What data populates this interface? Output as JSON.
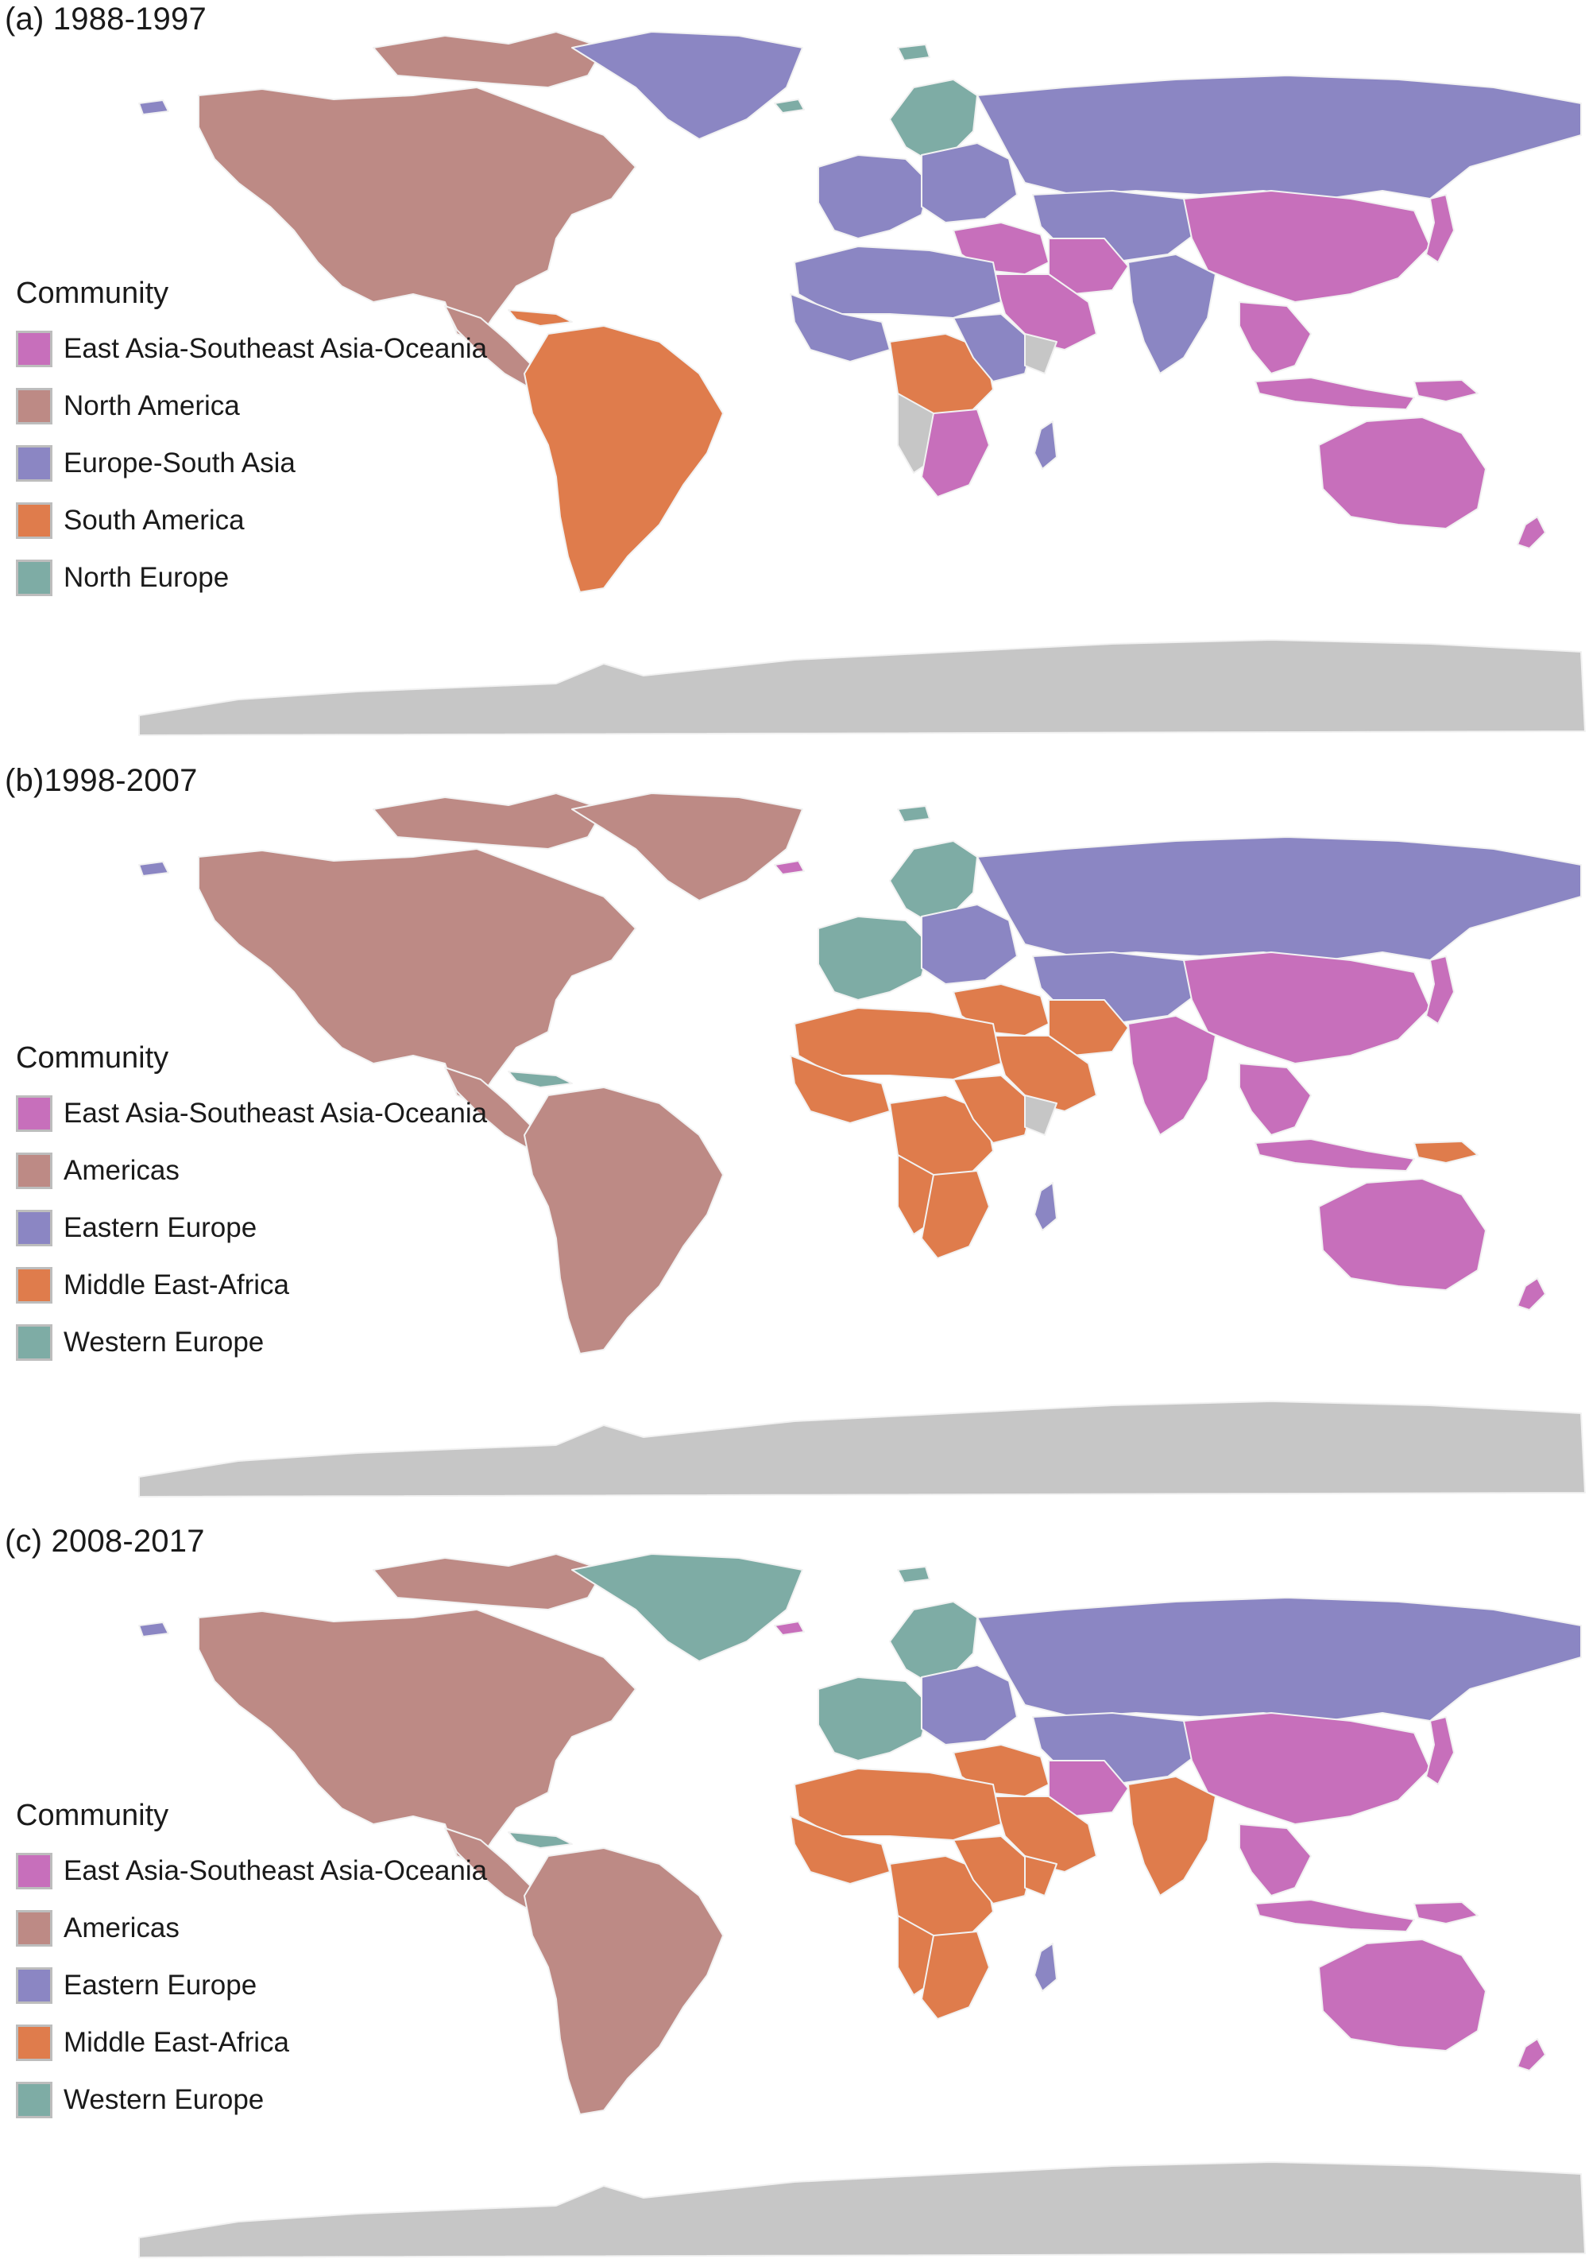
{
  "colors": {
    "east_asia": "#c76fbb",
    "north_america": "#bd8a85",
    "europe_south_asia": "#8b86c3",
    "south_america": "#df7c4c",
    "north_europe": "#7eaca5",
    "no_data": "#c6c6c6",
    "border": "#f2f2f2"
  },
  "panels": [
    {
      "title": "(a) 1988-1997",
      "legend": {
        "title": "Community",
        "items": [
          {
            "label": "East Asia-Southeast Asia-Oceania",
            "color": "#c76fbb"
          },
          {
            "label": "North America",
            "color": "#bd8a85"
          },
          {
            "label": "Europe-South Asia",
            "color": "#8b86c3"
          },
          {
            "label": "South America",
            "color": "#df7c4c"
          },
          {
            "label": "North Europe",
            "color": "#7eaca5"
          }
        ]
      },
      "regions": {
        "north_america": "#bd8a85",
        "greenland": "#8b86c3",
        "canadian_arctic": "#bd8a85",
        "alaska_tip": "#8b86c3",
        "central_america": "#bd8a85",
        "caribbean": "#df7c4c",
        "south_america": "#df7c4c",
        "iceland": "#7eaca5",
        "svalbard": "#7eaca5",
        "scandinavia": "#7eaca5",
        "western_europe": "#8b86c3",
        "eastern_europe": "#8b86c3",
        "russia": "#8b86c3",
        "central_asia": "#8b86c3",
        "middle_east": "#c76fbb",
        "arabia": "#c76fbb",
        "iran": "#c76fbb",
        "south_asia": "#8b86c3",
        "china": "#c76fbb",
        "japan": "#c76fbb",
        "southeast_asia": "#c76fbb",
        "indonesia": "#c76fbb",
        "new_guinea": "#c76fbb",
        "australia": "#c76fbb",
        "new_zealand": "#c76fbb",
        "north_africa": "#8b86c3",
        "west_africa": "#8b86c3",
        "central_africa": "#df7c4c",
        "east_africa": "#8b86c3",
        "southern_africa": "#c76fbb",
        "angola_namibia": "#c6c6c6",
        "madagascar": "#8b86c3",
        "horn_africa": "#c6c6c6",
        "antarctica": "#c6c6c6"
      }
    },
    {
      "title": "(b)1998-2007",
      "legend": {
        "title": "Community",
        "items": [
          {
            "label": "East Asia-Southeast Asia-Oceania",
            "color": "#c76fbb"
          },
          {
            "label": "Americas",
            "color": "#bd8a85"
          },
          {
            "label": "Eastern Europe",
            "color": "#8b86c3"
          },
          {
            "label": "Middle East-Africa",
            "color": "#df7c4c"
          },
          {
            "label": "Western Europe",
            "color": "#7eaca5"
          }
        ]
      },
      "regions": {
        "north_america": "#bd8a85",
        "greenland": "#bd8a85",
        "canadian_arctic": "#bd8a85",
        "alaska_tip": "#8b86c3",
        "central_america": "#bd8a85",
        "caribbean": "#7eaca5",
        "south_america": "#bd8a85",
        "iceland": "#c76fbb",
        "svalbard": "#7eaca5",
        "scandinavia": "#7eaca5",
        "western_europe": "#7eaca5",
        "eastern_europe": "#8b86c3",
        "russia": "#8b86c3",
        "central_asia": "#8b86c3",
        "middle_east": "#df7c4c",
        "arabia": "#df7c4c",
        "iran": "#df7c4c",
        "south_asia": "#c76fbb",
        "china": "#c76fbb",
        "japan": "#c76fbb",
        "southeast_asia": "#c76fbb",
        "indonesia": "#c76fbb",
        "new_guinea": "#df7c4c",
        "australia": "#c76fbb",
        "new_zealand": "#c76fbb",
        "north_africa": "#df7c4c",
        "west_africa": "#df7c4c",
        "central_africa": "#df7c4c",
        "east_africa": "#df7c4c",
        "southern_africa": "#df7c4c",
        "angola_namibia": "#df7c4c",
        "madagascar": "#8b86c3",
        "horn_africa": "#c6c6c6",
        "antarctica": "#c6c6c6"
      }
    },
    {
      "title": "(c) 2008-2017",
      "legend": {
        "title": "Community",
        "items": [
          {
            "label": "East Asia-Southeast Asia-Oceania",
            "color": "#c76fbb"
          },
          {
            "label": "Americas",
            "color": "#bd8a85"
          },
          {
            "label": "Eastern Europe",
            "color": "#8b86c3"
          },
          {
            "label": "Middle East-Africa",
            "color": "#df7c4c"
          },
          {
            "label": "Western Europe",
            "color": "#7eaca5"
          }
        ]
      },
      "regions": {
        "north_america": "#bd8a85",
        "greenland": "#7eaca5",
        "canadian_arctic": "#bd8a85",
        "alaska_tip": "#8b86c3",
        "central_america": "#bd8a85",
        "caribbean": "#7eaca5",
        "south_america": "#bd8a85",
        "iceland": "#c76fbb",
        "svalbard": "#7eaca5",
        "scandinavia": "#7eaca5",
        "western_europe": "#7eaca5",
        "eastern_europe": "#8b86c3",
        "russia": "#8b86c3",
        "central_asia": "#8b86c3",
        "middle_east": "#df7c4c",
        "arabia": "#df7c4c",
        "iran": "#c76fbb",
        "south_asia": "#df7c4c",
        "china": "#c76fbb",
        "japan": "#c76fbb",
        "southeast_asia": "#c76fbb",
        "indonesia": "#c76fbb",
        "new_guinea": "#c76fbb",
        "australia": "#c76fbb",
        "new_zealand": "#c76fbb",
        "north_africa": "#df7c4c",
        "west_africa": "#df7c4c",
        "central_africa": "#df7c4c",
        "east_africa": "#df7c4c",
        "southern_africa": "#df7c4c",
        "angola_namibia": "#df7c4c",
        "madagascar": "#8b86c3",
        "horn_africa": "#df7c4c",
        "antarctica": "#c6c6c6"
      }
    }
  ]
}
